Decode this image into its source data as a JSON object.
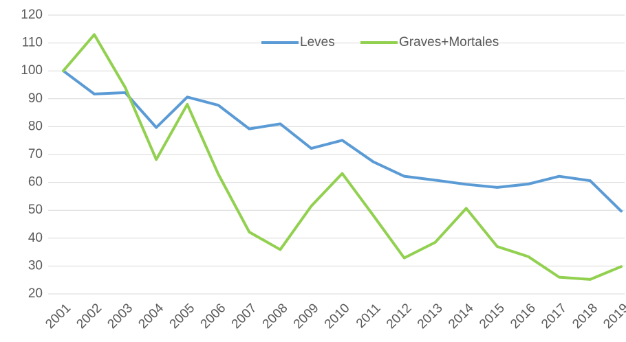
{
  "chart_data": {
    "type": "line",
    "categories": [
      "2001",
      "2002",
      "2003",
      "2004",
      "2005",
      "2006",
      "2007",
      "2008",
      "2009",
      "2010",
      "2011",
      "2012",
      "2013",
      "2014",
      "2015",
      "2016",
      "2017",
      "2018",
      "2019"
    ],
    "series": [
      {
        "name": "Leves",
        "color": "#5b9bd5",
        "values": [
          100,
          91.7,
          92.2,
          79.7,
          90.6,
          87.7,
          79.2,
          81,
          72.2,
          75.1,
          67.4,
          62.2,
          60.8,
          59.3,
          58.2,
          59.4,
          62.2,
          60.6,
          49.7
        ]
      },
      {
        "name": "Graves+Mortales",
        "color": "#92d050",
        "values": [
          100,
          113,
          94,
          68.2,
          88,
          63,
          42.2,
          35.9,
          51.5,
          63.2,
          48.2,
          32.9,
          38.5,
          50.7,
          37,
          33.4,
          26,
          25.2,
          29.8
        ]
      }
    ],
    "ylim": [
      20,
      120
    ],
    "yticks": [
      20,
      30,
      40,
      50,
      60,
      70,
      80,
      90,
      100,
      110,
      120
    ],
    "grid": true,
    "legend": "top"
  }
}
